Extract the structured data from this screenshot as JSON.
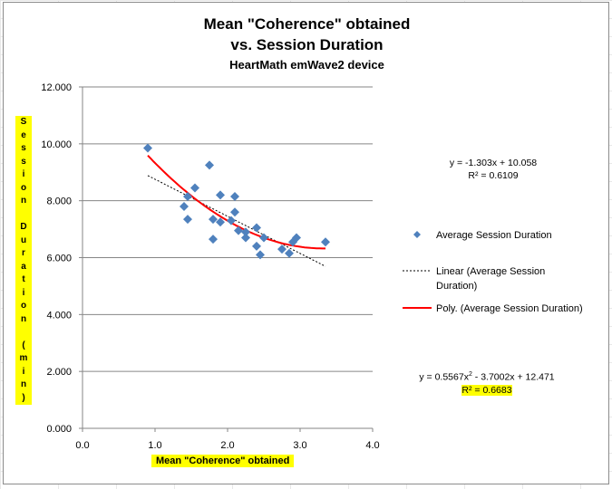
{
  "chart_data": {
    "type": "scatter",
    "title": "Mean \"Coherence\" obtained",
    "title_line2": "vs. Session Duration",
    "subtitle": "HeartMath emWave2 device",
    "xlabel": "Mean \"Coherence\" obtained",
    "ylabel": "Session Duration (min)",
    "ylabel_chars": [
      "S",
      "e",
      "s",
      "s",
      "i",
      "o",
      "n",
      "",
      "D",
      "u",
      "r",
      "a",
      "t",
      "i",
      "o",
      "n",
      "",
      "(",
      "m",
      "i",
      "n",
      ")"
    ],
    "xlim": [
      0,
      4
    ],
    "ylim": [
      0,
      12
    ],
    "x_ticks": [
      "0.0",
      "1.0",
      "2.0",
      "3.0",
      "4.0"
    ],
    "y_ticks": [
      "0.000",
      "2.000",
      "4.000",
      "6.000",
      "8.000",
      "10.000",
      "12.000"
    ],
    "grid": "horizontal",
    "legend_position": "right",
    "series": [
      {
        "name": "Average Session Duration",
        "color": "#4f81bd",
        "marker": "diamond",
        "points": [
          [
            0.9,
            9.85
          ],
          [
            1.4,
            7.8
          ],
          [
            1.45,
            8.15
          ],
          [
            1.45,
            7.35
          ],
          [
            1.55,
            8.45
          ],
          [
            1.75,
            9.25
          ],
          [
            1.8,
            7.35
          ],
          [
            1.8,
            6.65
          ],
          [
            1.9,
            8.2
          ],
          [
            1.9,
            7.25
          ],
          [
            2.05,
            7.3
          ],
          [
            2.1,
            8.15
          ],
          [
            2.1,
            7.6
          ],
          [
            2.15,
            6.95
          ],
          [
            2.25,
            6.7
          ],
          [
            2.25,
            6.9
          ],
          [
            2.4,
            7.05
          ],
          [
            2.4,
            6.4
          ],
          [
            2.45,
            6.1
          ],
          [
            2.5,
            6.7
          ],
          [
            2.75,
            6.3
          ],
          [
            2.85,
            6.15
          ],
          [
            2.9,
            6.55
          ],
          [
            2.95,
            6.7
          ],
          [
            3.35,
            6.55
          ]
        ]
      }
    ],
    "trendlines": [
      {
        "name": "Linear (Average Session Duration)",
        "kind": "linear",
        "color": "#000000",
        "dash": true,
        "coefficients": [
          10.058,
          -1.303
        ],
        "x_range": [
          0.9,
          3.35
        ],
        "equation": "y = -1.303x + 10.058",
        "r2": "R² = 0.6109"
      },
      {
        "name": "Poly. (Average Session Duration)",
        "kind": "polynomial",
        "color": "#ff0000",
        "dash": false,
        "coefficients": [
          12.471,
          -3.7002,
          0.5567
        ],
        "x_range": [
          0.9,
          3.35
        ],
        "equation_parts": [
          "y = 0.5567x",
          "2",
          " - 3.7002x + 12.471"
        ],
        "r2": "R² = 0.6683"
      }
    ]
  }
}
